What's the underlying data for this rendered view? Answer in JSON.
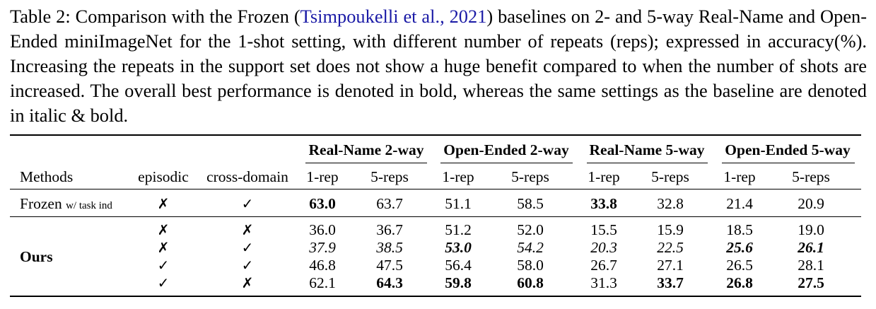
{
  "caption": {
    "label": "Table 2:",
    "text_before": "Comparison with the Frozen (",
    "citation": "Tsimpoukelli et al., 2021",
    "text_after": ") baselines on 2- and 5-way Real-Name and Open-Ended miniImageNet for the 1-shot setting, with different number of repeats (reps); expressed in accuracy(%). Increasing the repeats in the support set does not show a huge benefit compared to when the number of shots are increased. The overall best performance is denoted in bold, whereas the same settings as the baseline are denoted in italic & bold."
  },
  "table": {
    "group_headers": [
      "Real-Name 2-way",
      "Open-Ended 2-way",
      "Real-Name 5-way",
      "Open-Ended 5-way"
    ],
    "columns": [
      "Methods",
      "episodic",
      "cross-domain",
      "1-rep",
      "5-reps",
      "1-rep",
      "5-reps",
      "1-rep",
      "5-reps",
      "1-rep",
      "5-reps"
    ],
    "baseline": {
      "method": "Frozen",
      "method_suffix": "w/ task ind",
      "episodic": "✗",
      "cross_domain": "✓",
      "values": [
        "63.0",
        "63.7",
        "51.1",
        "58.5",
        "33.8",
        "32.8",
        "21.4",
        "20.9"
      ]
    },
    "ours_label": "Ours",
    "ours_rows": [
      {
        "episodic": "✗",
        "cross_domain": "✗",
        "values": [
          "36.0",
          "36.7",
          "51.2",
          "52.0",
          "15.5",
          "15.9",
          "18.5",
          "19.0"
        ]
      },
      {
        "episodic": "✗",
        "cross_domain": "✓",
        "values": [
          "37.9",
          "38.5",
          "53.0",
          "54.2",
          "20.3",
          "22.5",
          "25.6",
          "26.1"
        ]
      },
      {
        "episodic": "✓",
        "cross_domain": "✓",
        "values": [
          "46.8",
          "47.5",
          "56.4",
          "58.0",
          "26.7",
          "27.1",
          "26.5",
          "28.1"
        ]
      },
      {
        "episodic": "✓",
        "cross_domain": "✗",
        "values": [
          "62.1",
          "64.3",
          "59.8",
          "60.8",
          "31.3",
          "33.7",
          "26.8",
          "27.5"
        ]
      }
    ]
  }
}
